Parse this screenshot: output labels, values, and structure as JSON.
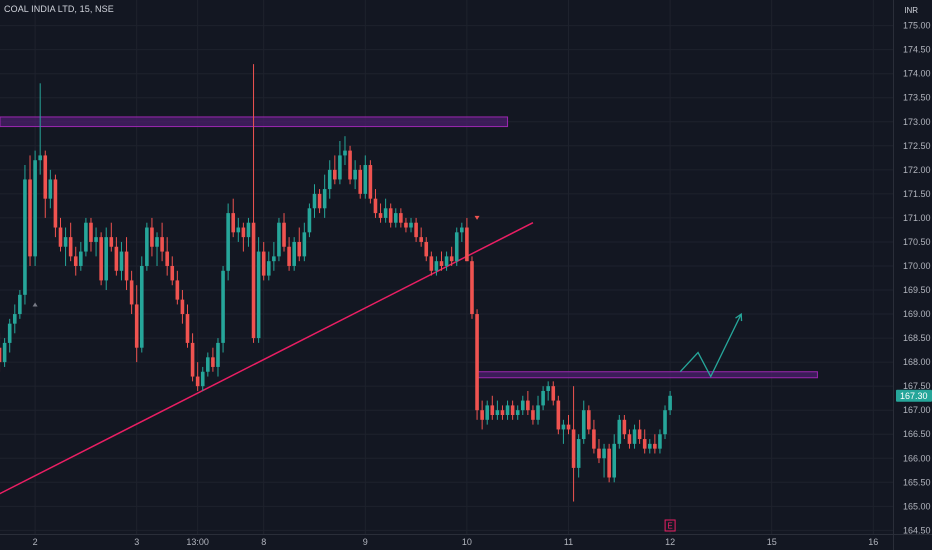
{
  "header": {
    "symbol": "COAL INDIA LTD",
    "interval": "15",
    "exchange": "NSE"
  },
  "currency": "INR",
  "colors": {
    "background": "#131722",
    "grid": "#1e222d",
    "up": "#26a69a",
    "down": "#ef5350",
    "trendline": "#e91e63",
    "zone_fill": "#4a1f6b",
    "zone_border": "#9c27b0",
    "projection": "#26a69a",
    "price_label": "#26a69a"
  },
  "chart_data": {
    "type": "candlestick",
    "y_ticks": [
      "164.50",
      "165.00",
      "165.50",
      "166.00",
      "166.50",
      "167.00",
      "167.50",
      "168.00",
      "168.50",
      "169.00",
      "169.50",
      "170.00",
      "170.50",
      "171.00",
      "171.50",
      "172.00",
      "172.50",
      "173.00",
      "173.50",
      "174.00",
      "174.50",
      "175.00"
    ],
    "ylim": [
      164.3,
      175.2
    ],
    "x_ticks": [
      {
        "label": "2",
        "bar": 7
      },
      {
        "label": "3",
        "bar": 27
      },
      {
        "label": "13:00",
        "bar": 39
      },
      {
        "label": "8",
        "bar": 52
      },
      {
        "label": "9",
        "bar": 72
      },
      {
        "label": "10",
        "bar": 92
      },
      {
        "label": "11",
        "bar": 112
      },
      {
        "label": "12",
        "bar": 132
      },
      {
        "label": "15",
        "bar": 152
      },
      {
        "label": "16",
        "bar": 172
      }
    ],
    "last_price": "167.30",
    "last_price_value": 167.3,
    "earnings_marker": "E",
    "earnings_bar": 132,
    "candles": [
      [
        168.3,
        168.6,
        167.8,
        168.0
      ],
      [
        168.0,
        168.5,
        167.9,
        168.4
      ],
      [
        168.4,
        168.9,
        168.2,
        168.8
      ],
      [
        168.8,
        169.2,
        168.6,
        169.0
      ],
      [
        169.0,
        169.5,
        168.9,
        169.4
      ],
      [
        169.4,
        172.1,
        169.2,
        171.8
      ],
      [
        171.8,
        172.3,
        170.0,
        170.2
      ],
      [
        170.2,
        172.4,
        170.0,
        172.2
      ],
      [
        172.2,
        173.8,
        171.9,
        172.3
      ],
      [
        172.3,
        172.4,
        171.0,
        171.4
      ],
      [
        171.4,
        172.0,
        171.2,
        171.8
      ],
      [
        171.8,
        171.9,
        170.6,
        170.8
      ],
      [
        170.8,
        171.0,
        170.3,
        170.4
      ],
      [
        170.4,
        170.8,
        170.0,
        170.6
      ],
      [
        170.6,
        170.9,
        170.1,
        170.2
      ],
      [
        170.2,
        170.4,
        169.8,
        170.0
      ],
      [
        170.0,
        170.5,
        169.9,
        170.3
      ],
      [
        170.3,
        171.0,
        170.2,
        170.9
      ],
      [
        170.9,
        171.0,
        170.3,
        170.5
      ],
      [
        170.5,
        170.8,
        170.2,
        170.6
      ],
      [
        170.6,
        170.7,
        169.6,
        169.7
      ],
      [
        169.7,
        170.8,
        169.5,
        170.6
      ],
      [
        170.6,
        170.9,
        170.3,
        170.4
      ],
      [
        170.4,
        170.6,
        169.8,
        169.9
      ],
      [
        169.9,
        170.5,
        169.7,
        170.3
      ],
      [
        170.3,
        170.6,
        169.5,
        169.7
      ],
      [
        169.7,
        169.9,
        169.0,
        169.2
      ],
      [
        169.2,
        169.6,
        168.0,
        168.3
      ],
      [
        168.3,
        170.2,
        168.2,
        170.0
      ],
      [
        170.0,
        170.9,
        169.9,
        170.8
      ],
      [
        170.8,
        171.0,
        170.2,
        170.4
      ],
      [
        170.4,
        170.7,
        170.0,
        170.6
      ],
      [
        170.6,
        170.9,
        170.1,
        170.3
      ],
      [
        170.3,
        170.6,
        169.8,
        170.0
      ],
      [
        170.0,
        170.2,
        169.6,
        169.7
      ],
      [
        169.7,
        169.9,
        169.2,
        169.3
      ],
      [
        169.3,
        169.5,
        168.8,
        169.0
      ],
      [
        169.0,
        169.2,
        168.3,
        168.4
      ],
      [
        168.4,
        168.6,
        167.6,
        167.7
      ],
      [
        167.7,
        168.0,
        167.4,
        167.5
      ],
      [
        167.5,
        167.9,
        167.4,
        167.8
      ],
      [
        167.8,
        168.2,
        167.7,
        168.1
      ],
      [
        168.1,
        168.3,
        167.8,
        167.9
      ],
      [
        167.9,
        168.5,
        167.7,
        168.4
      ],
      [
        168.4,
        170.0,
        168.2,
        169.9
      ],
      [
        169.9,
        171.3,
        169.7,
        171.1
      ],
      [
        171.1,
        171.4,
        170.6,
        170.7
      ],
      [
        170.7,
        171.0,
        170.5,
        170.8
      ],
      [
        170.8,
        170.9,
        170.3,
        170.6
      ],
      [
        170.6,
        171.0,
        170.4,
        170.9
      ],
      [
        170.9,
        174.2,
        168.4,
        168.5
      ],
      [
        168.5,
        170.6,
        168.4,
        170.3
      ],
      [
        170.3,
        170.5,
        169.7,
        169.8
      ],
      [
        169.8,
        170.3,
        169.7,
        170.1
      ],
      [
        170.1,
        170.5,
        169.9,
        170.2
      ],
      [
        170.2,
        171.0,
        170.1,
        170.9
      ],
      [
        170.9,
        171.1,
        170.3,
        170.4
      ],
      [
        170.4,
        170.6,
        169.9,
        170.0
      ],
      [
        170.0,
        170.6,
        169.9,
        170.5
      ],
      [
        170.5,
        170.8,
        170.1,
        170.2
      ],
      [
        170.2,
        170.9,
        170.1,
        170.7
      ],
      [
        170.7,
        171.3,
        170.6,
        171.2
      ],
      [
        171.2,
        171.7,
        171.0,
        171.5
      ],
      [
        171.5,
        171.6,
        171.1,
        171.2
      ],
      [
        171.2,
        171.9,
        171.0,
        171.6
      ],
      [
        171.6,
        172.2,
        171.4,
        172.0
      ],
      [
        172.0,
        172.3,
        171.7,
        171.8
      ],
      [
        171.8,
        172.6,
        171.7,
        172.3
      ],
      [
        172.3,
        172.7,
        172.1,
        172.4
      ],
      [
        172.4,
        172.5,
        171.7,
        171.8
      ],
      [
        171.8,
        172.2,
        171.6,
        172.0
      ],
      [
        172.0,
        172.1,
        171.4,
        171.5
      ],
      [
        171.5,
        172.3,
        171.4,
        172.1
      ],
      [
        172.1,
        172.2,
        171.3,
        171.4
      ],
      [
        171.4,
        171.6,
        171.0,
        171.1
      ],
      [
        171.1,
        171.3,
        170.9,
        171.0
      ],
      [
        171.0,
        171.4,
        170.9,
        171.2
      ],
      [
        171.2,
        171.3,
        170.8,
        170.9
      ],
      [
        170.9,
        171.2,
        170.8,
        171.1
      ],
      [
        171.1,
        171.2,
        170.8,
        170.9
      ],
      [
        170.9,
        171.0,
        170.7,
        170.8
      ],
      [
        170.8,
        171.0,
        170.7,
        170.9
      ],
      [
        170.9,
        171.0,
        170.5,
        170.6
      ],
      [
        170.6,
        170.8,
        170.4,
        170.5
      ],
      [
        170.5,
        170.6,
        170.1,
        170.2
      ],
      [
        170.2,
        170.3,
        169.8,
        169.9
      ],
      [
        169.9,
        170.2,
        169.8,
        170.1
      ],
      [
        170.1,
        170.3,
        169.9,
        170.0
      ],
      [
        170.0,
        170.3,
        169.9,
        170.2
      ],
      [
        170.2,
        170.4,
        170.0,
        170.1
      ],
      [
        170.1,
        170.8,
        170.0,
        170.7
      ],
      [
        170.7,
        170.9,
        170.5,
        170.8
      ],
      [
        170.8,
        171.0,
        170.1,
        170.1
      ],
      [
        170.1,
        170.2,
        168.9,
        169.0
      ],
      [
        169.0,
        169.1,
        166.8,
        167.0
      ],
      [
        167.0,
        167.2,
        166.6,
        166.8
      ],
      [
        166.8,
        167.2,
        166.7,
        167.1
      ],
      [
        167.1,
        167.3,
        166.8,
        166.9
      ],
      [
        166.9,
        167.2,
        166.8,
        167.0
      ],
      [
        167.0,
        167.1,
        166.8,
        166.9
      ],
      [
        166.9,
        167.2,
        166.8,
        167.1
      ],
      [
        167.1,
        167.2,
        166.8,
        166.9
      ],
      [
        166.9,
        167.1,
        166.8,
        167.0
      ],
      [
        167.0,
        167.3,
        166.9,
        167.2
      ],
      [
        167.2,
        167.4,
        166.9,
        167.0
      ],
      [
        167.0,
        167.1,
        166.7,
        166.8
      ],
      [
        166.8,
        167.3,
        166.7,
        167.1
      ],
      [
        167.1,
        167.5,
        167.0,
        167.4
      ],
      [
        167.4,
        167.6,
        167.2,
        167.5
      ],
      [
        167.5,
        167.6,
        167.1,
        167.2
      ],
      [
        167.2,
        167.3,
        166.5,
        166.6
      ],
      [
        166.6,
        166.8,
        166.3,
        166.7
      ],
      [
        166.7,
        166.9,
        166.5,
        166.6
      ],
      [
        166.6,
        167.5,
        165.1,
        165.8
      ],
      [
        165.8,
        166.5,
        165.6,
        166.4
      ],
      [
        166.4,
        167.2,
        166.3,
        167.0
      ],
      [
        167.0,
        167.1,
        166.5,
        166.6
      ],
      [
        166.6,
        166.8,
        166.1,
        166.2
      ],
      [
        166.2,
        166.4,
        165.9,
        166.0
      ],
      [
        166.0,
        166.3,
        165.6,
        166.2
      ],
      [
        166.2,
        166.3,
        165.5,
        165.6
      ],
      [
        165.6,
        166.5,
        165.5,
        166.3
      ],
      [
        166.3,
        166.9,
        166.2,
        166.8
      ],
      [
        166.8,
        166.9,
        166.4,
        166.5
      ],
      [
        166.5,
        166.6,
        166.2,
        166.3
      ],
      [
        166.3,
        166.7,
        166.2,
        166.6
      ],
      [
        166.6,
        166.8,
        166.3,
        166.4
      ],
      [
        166.4,
        166.6,
        166.1,
        166.2
      ],
      [
        166.2,
        166.4,
        166.1,
        166.3
      ],
      [
        166.3,
        166.5,
        166.1,
        166.2
      ],
      [
        166.2,
        166.6,
        166.1,
        166.5
      ],
      [
        166.5,
        167.1,
        166.4,
        167.0
      ],
      [
        167.0,
        167.4,
        166.9,
        167.3
      ]
    ],
    "zones": [
      {
        "from_bar": -3,
        "to_bar": 100,
        "low": 172.9,
        "high": 173.1
      },
      {
        "from_bar": 94,
        "to_bar": 161,
        "low": 167.7,
        "high": 167.8
      }
    ],
    "trendline": {
      "x1_bar": -3,
      "y1": 165.1,
      "x2_bar": 105,
      "y2": 170.9
    },
    "projection": [
      {
        "bar": 134,
        "y": 167.8
      },
      {
        "bar": 137.5,
        "y": 168.2
      },
      {
        "bar": 140,
        "y": 167.7
      },
      {
        "bar": 146,
        "y": 169.0
      }
    ],
    "markers": [
      {
        "bar": 7,
        "y": 169.2,
        "shape": "up"
      },
      {
        "bar": 94,
        "y": 171.0,
        "shape": "down"
      }
    ]
  }
}
